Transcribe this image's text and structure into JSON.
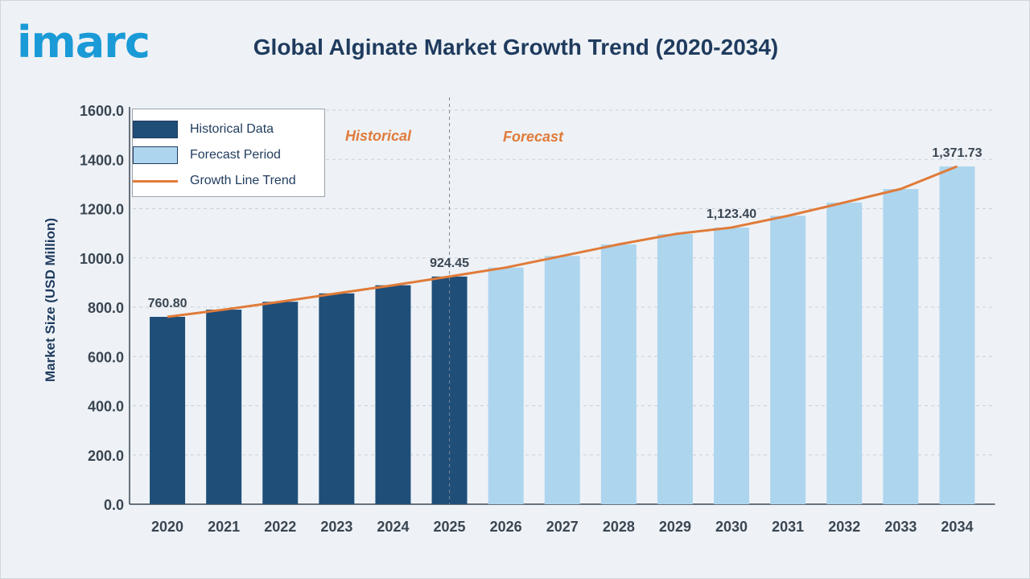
{
  "logo_text": "imarc",
  "chart_data": {
    "type": "bar",
    "title": "Global Alginate Market Growth Trend (2020-2034)",
    "ylabel": "Market Size (USD Million)",
    "xlabel": "",
    "ylim": [
      0,
      1600
    ],
    "yticks": [
      "0.0",
      "200.0",
      "400.0",
      "600.0",
      "800.0",
      "1000.0",
      "1200.0",
      "1400.0",
      "1600.0"
    ],
    "categories": [
      "2020",
      "2021",
      "2022",
      "2023",
      "2024",
      "2025",
      "2026",
      "2027",
      "2028",
      "2029",
      "2030",
      "2031",
      "2032",
      "2033",
      "2034"
    ],
    "series": [
      {
        "name": "Historical Data",
        "color": "#1f4e79",
        "values": [
          760.8,
          790,
          822,
          856,
          889,
          924.45,
          null,
          null,
          null,
          null,
          null,
          null,
          null,
          null,
          null
        ]
      },
      {
        "name": "Forecast Period",
        "color": "#aed5ee",
        "values": [
          null,
          null,
          null,
          null,
          null,
          null,
          961,
          1008,
          1055,
          1097,
          1123.4,
          1171,
          1225,
          1280,
          1371.73
        ]
      },
      {
        "name": "Growth Line Trend",
        "type": "line",
        "color": "#e07b39",
        "values": [
          760.8,
          790,
          822,
          856,
          889,
          924.45,
          961,
          1008,
          1055,
          1097,
          1123.4,
          1171,
          1225,
          1280,
          1371.73
        ]
      }
    ],
    "data_labels": [
      {
        "category": "2020",
        "text": "760.80"
      },
      {
        "category": "2025",
        "text": "924.45"
      },
      {
        "category": "2030",
        "text": "1,123.40"
      },
      {
        "category": "2034",
        "text": "1,371.73"
      }
    ],
    "period_labels": {
      "historical": "Historical",
      "forecast": "Forecast"
    },
    "grid": true,
    "legend_position": "top-left"
  }
}
